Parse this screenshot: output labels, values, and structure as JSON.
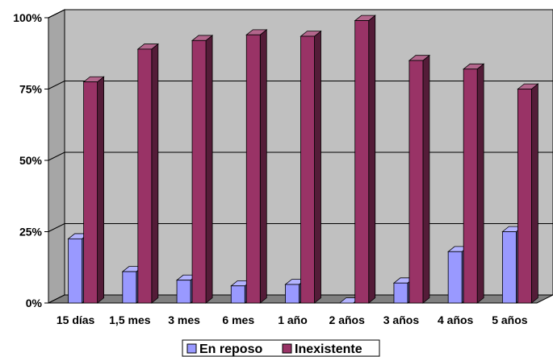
{
  "chart_data": {
    "type": "bar",
    "categories": [
      "15 días",
      "1,5 mes",
      "3 mes",
      "6 mes",
      "1 año",
      "2 años",
      "3 años",
      "4 años",
      "5 años"
    ],
    "series": [
      {
        "name": "En reposo",
        "values": [
          22.5,
          11,
          8,
          6,
          6.5,
          0,
          7,
          18,
          25
        ]
      },
      {
        "name": "Inexistente",
        "values": [
          77.5,
          89,
          92,
          94,
          93.5,
          99,
          85,
          82,
          75
        ]
      }
    ],
    "y_ticks": [
      "0%",
      "25%",
      "50%",
      "75%",
      "100%"
    ],
    "ylim": [
      0,
      100
    ],
    "legend_position": "bottom",
    "colors": {
      "En reposo": "#9999ff",
      "Inexistente": "#993366",
      "wall": "#c0c0c0",
      "floor": "#808080"
    }
  }
}
